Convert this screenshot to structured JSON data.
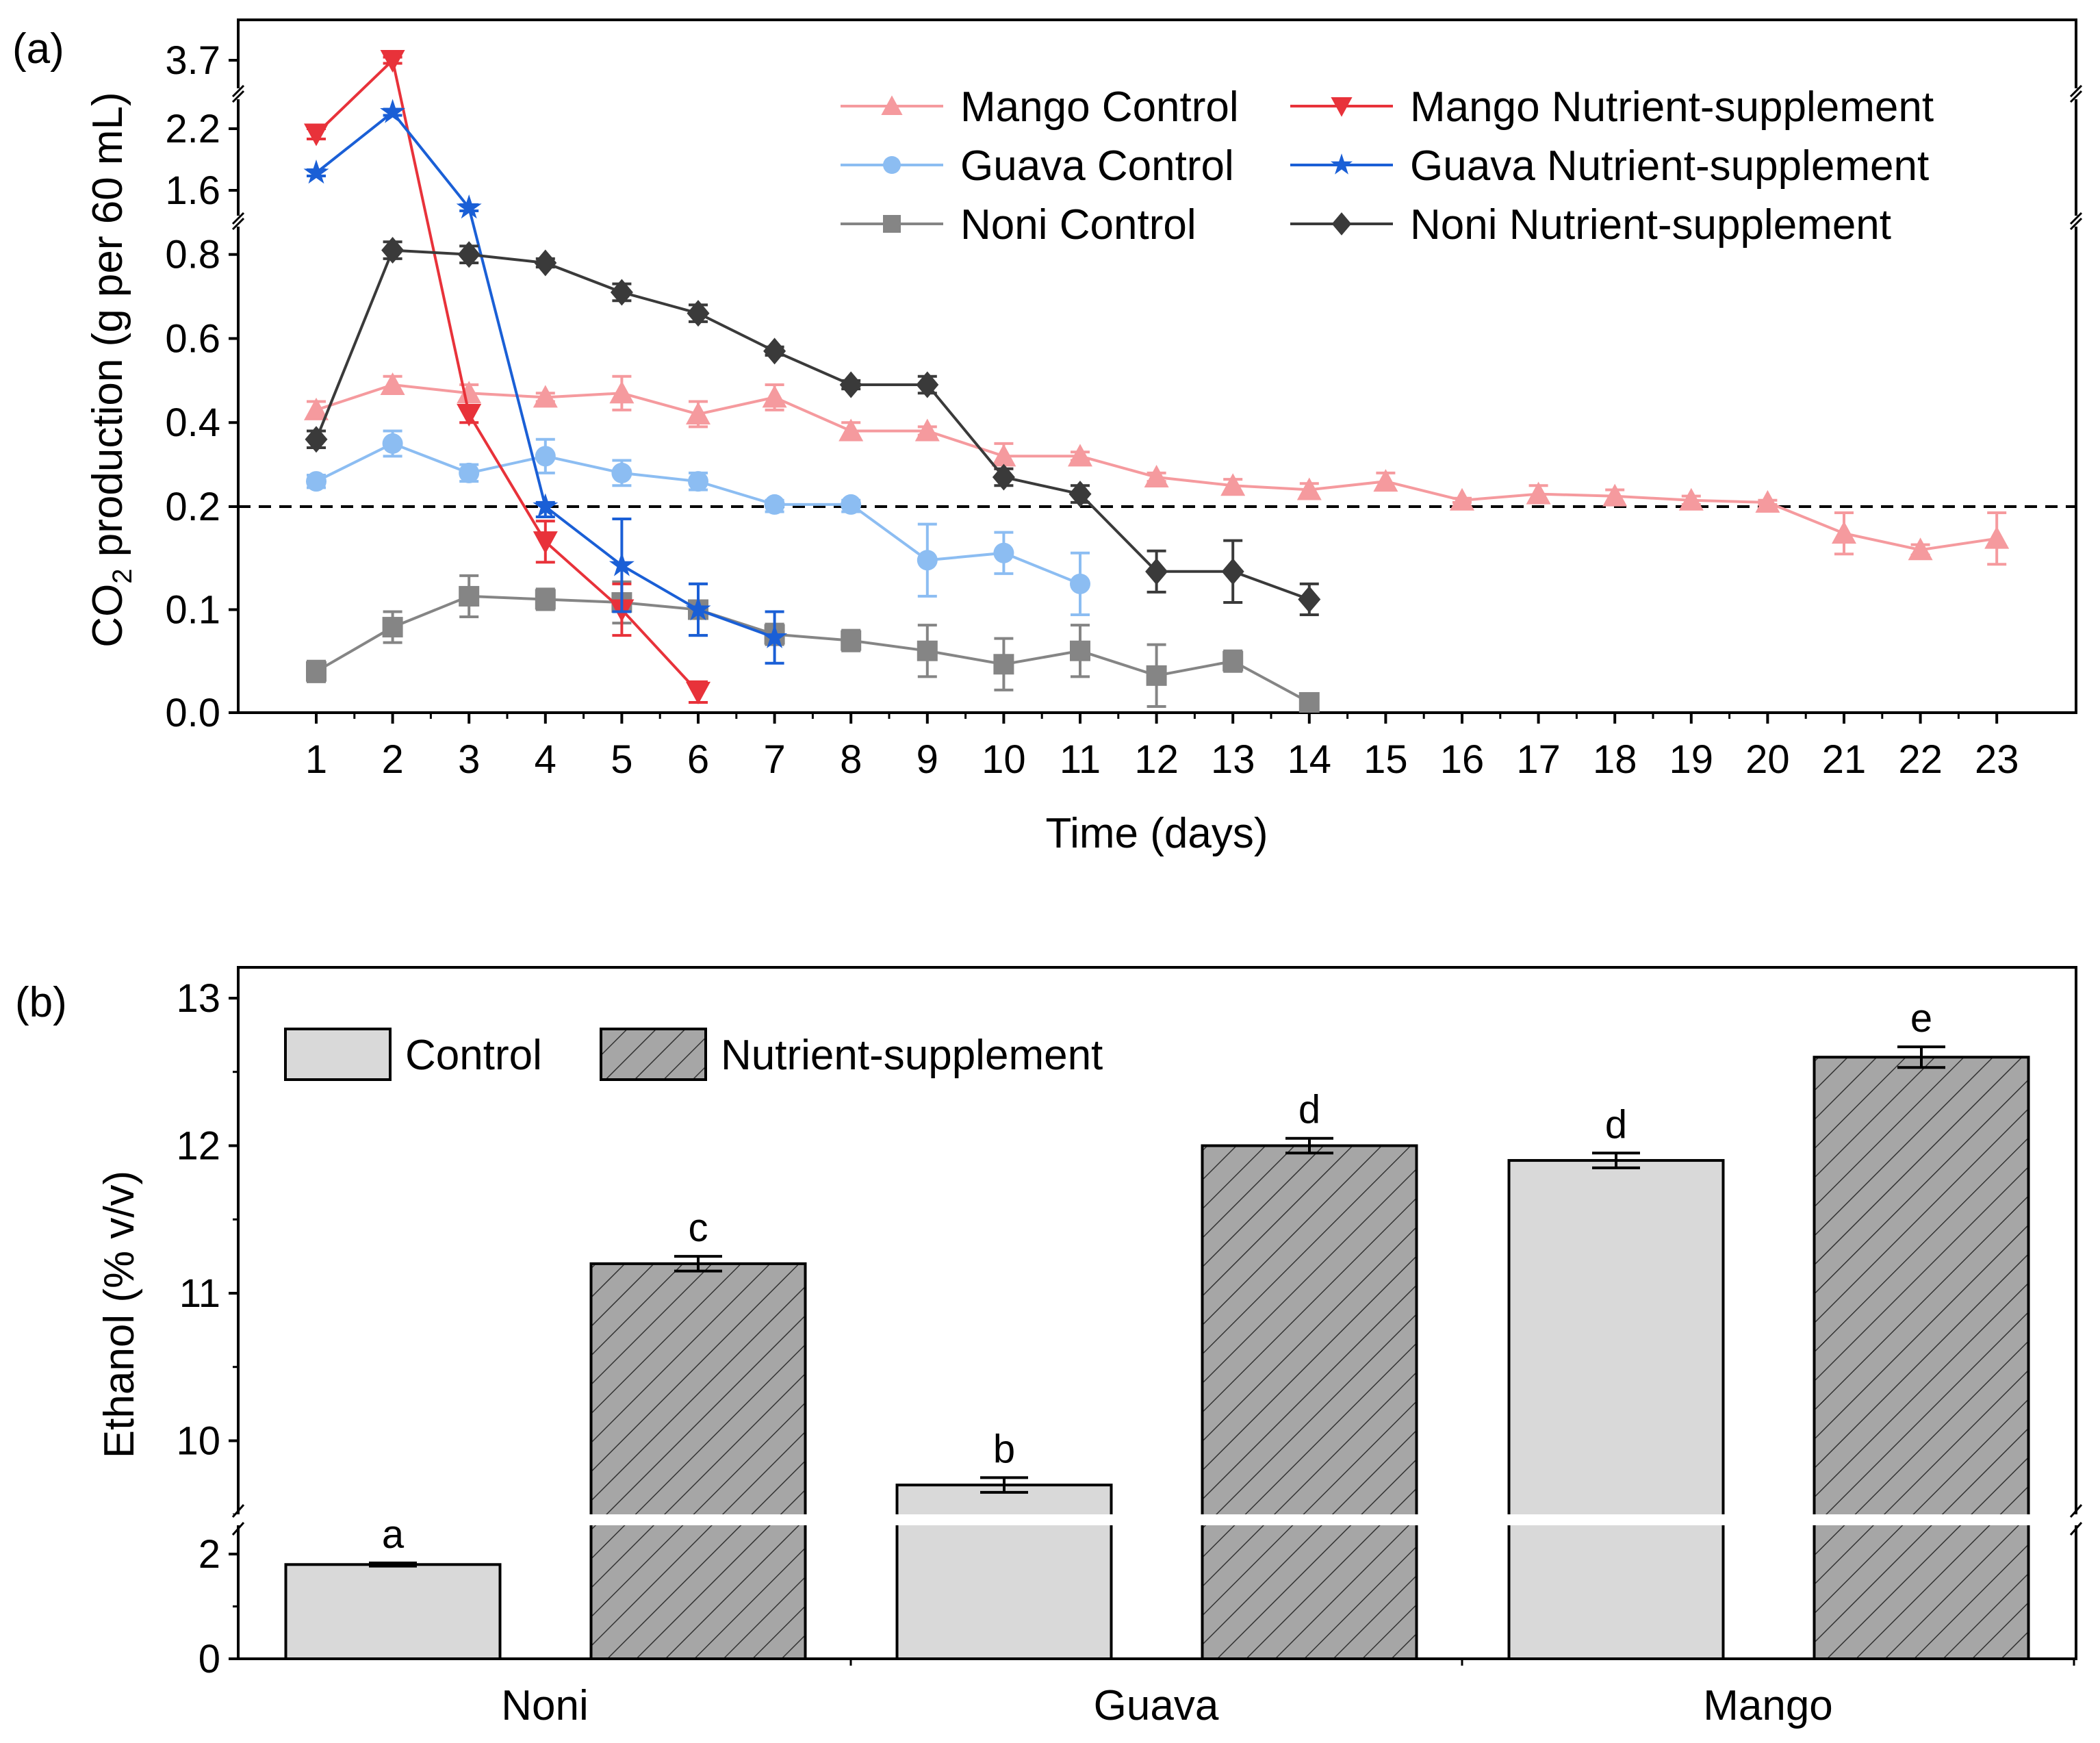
{
  "chart_data": [
    {
      "type": "line",
      "panel_label": "(a)",
      "xlabel": "Time (days)",
      "ylabel_main": "CO",
      "ylabel_sub": "2",
      "ylabel_rest": " production (g per 60 mL)",
      "x_ticks": [
        1,
        2,
        3,
        4,
        5,
        6,
        7,
        8,
        9,
        10,
        11,
        12,
        13,
        14,
        15,
        16,
        17,
        18,
        19,
        20,
        21,
        22,
        23
      ],
      "y_ticks": [
        "0.0",
        "0.1",
        "0.2",
        "0.4",
        "0.6",
        "0.8",
        "1.6",
        "2.2",
        "3.7"
      ],
      "y_tick_values": [
        0,
        0.1,
        0.2,
        0.4,
        0.6,
        0.8,
        1.6,
        2.2,
        3.7
      ],
      "y_axis_breaks": [
        [
          0.85,
          1.35
        ],
        [
          2.45,
          3.6
        ]
      ],
      "reference_line": 0.2,
      "legend_position": "top-right",
      "series": [
        {
          "name": "Mango Control",
          "color": "#f59a9e",
          "marker": "triangle-up",
          "x": [
            1,
            2,
            3,
            4,
            5,
            6,
            7,
            8,
            9,
            10,
            11,
            12,
            13,
            14,
            15,
            16,
            17,
            18,
            19,
            20,
            21,
            22,
            23
          ],
          "y": [
            0.43,
            0.49,
            0.47,
            0.46,
            0.47,
            0.42,
            0.46,
            0.38,
            0.38,
            0.32,
            0.32,
            0.27,
            0.25,
            0.24,
            0.26,
            0.215,
            0.23,
            0.225,
            0.215,
            0.21,
            0.174,
            0.158,
            0.169
          ],
          "err": [
            0.02,
            0.02,
            0.02,
            0.01,
            0.04,
            0.03,
            0.03,
            0.02,
            0.01,
            0.03,
            0.01,
            0.01,
            0.015,
            0.015,
            0.02,
            0.005,
            0.02,
            0.015,
            0.01,
            0.005,
            0.02,
            0.005,
            0.025
          ]
        },
        {
          "name": "Guava Control",
          "color": "#8cbdf2",
          "marker": "circle",
          "x": [
            1,
            2,
            3,
            4,
            5,
            6,
            7,
            8,
            9,
            10,
            11
          ],
          "y": [
            0.26,
            0.35,
            0.28,
            0.32,
            0.28,
            0.26,
            0.205,
            0.205,
            0.148,
            0.155,
            0.125
          ],
          "err": [
            0.015,
            0.03,
            0.02,
            0.04,
            0.03,
            0.02,
            0.01,
            0.01,
            0.035,
            0.02,
            0.03
          ]
        },
        {
          "name": "Noni Control",
          "color": "#858585",
          "marker": "square",
          "x": [
            1,
            2,
            3,
            4,
            5,
            6,
            7,
            8,
            9,
            10,
            11,
            12,
            13,
            14
          ],
          "y": [
            0.04,
            0.083,
            0.113,
            0.11,
            0.107,
            0.1,
            0.076,
            0.07,
            0.06,
            0.047,
            0.06,
            0.036,
            0.05,
            0.01
          ],
          "err": [
            0.01,
            0.015,
            0.02,
            0.01,
            0.02,
            0.025,
            0.01,
            0.01,
            0.025,
            0.025,
            0.025,
            0.03,
            0.01,
            0.005
          ]
        },
        {
          "name": "Mango Nutrient-supplement",
          "color": "#e8323a",
          "marker": "triangle-down",
          "x": [
            1,
            2,
            3,
            4,
            5,
            6
          ],
          "y": [
            2.15,
            3.7,
            0.42,
            0.166,
            0.1,
            0.02
          ],
          "err": [
            0.05,
            0.03,
            0.02,
            0.02,
            0.025,
            0.01
          ]
        },
        {
          "name": "Guava Nutrient-supplement",
          "color": "#1a5fd6",
          "marker": "star",
          "x": [
            1,
            2,
            3,
            4,
            5,
            6,
            7
          ],
          "y": [
            1.77,
            2.36,
            1.43,
            0.2,
            0.143,
            0.1,
            0.073
          ],
          "err": [
            0.03,
            0.03,
            0.03,
            0.01,
            0.045,
            0.025,
            0.025
          ]
        },
        {
          "name": "Noni Nutrient-supplement",
          "color": "#3a3a3a",
          "marker": "diamond",
          "x": [
            1,
            2,
            3,
            4,
            5,
            6,
            7,
            8,
            9,
            10,
            11,
            12,
            13,
            14
          ],
          "y": [
            0.36,
            0.81,
            0.8,
            0.78,
            0.71,
            0.66,
            0.57,
            0.49,
            0.49,
            0.27,
            0.23,
            0.137,
            0.137,
            0.11
          ],
          "err": [
            0.02,
            0.02,
            0.02,
            0.01,
            0.02,
            0.02,
            0.01,
            0.01,
            0.02,
            0.02,
            0.02,
            0.02,
            0.03,
            0.015
          ]
        }
      ]
    },
    {
      "type": "bar",
      "panel_label": "(b)",
      "ylabel": "Ethanol (% v/v)",
      "xlabel": "",
      "categories": [
        "Noni",
        "Guava",
        "Mango"
      ],
      "y_ticks": [
        "0",
        "2",
        "10",
        "11",
        "12",
        "13"
      ],
      "y_tick_values": [
        0,
        2,
        10,
        11,
        12,
        13
      ],
      "y_axis_break": [
        2.6,
        9.45
      ],
      "legend_position": "top-left",
      "series": [
        {
          "name": "Control",
          "fill": "#d9d9d9",
          "pattern": "solid",
          "values": [
            1.8,
            9.7,
            11.9
          ],
          "err": [
            0.03,
            0.05,
            0.05
          ],
          "letters": [
            "a",
            "b",
            "d"
          ]
        },
        {
          "name": "Nutrient-supplement",
          "fill": "#a6a6a6",
          "pattern": "hatched",
          "values": [
            11.2,
            12.0,
            12.6
          ],
          "err": [
            0.05,
            0.05,
            0.07
          ],
          "letters": [
            "c",
            "d",
            "e"
          ]
        }
      ]
    }
  ]
}
